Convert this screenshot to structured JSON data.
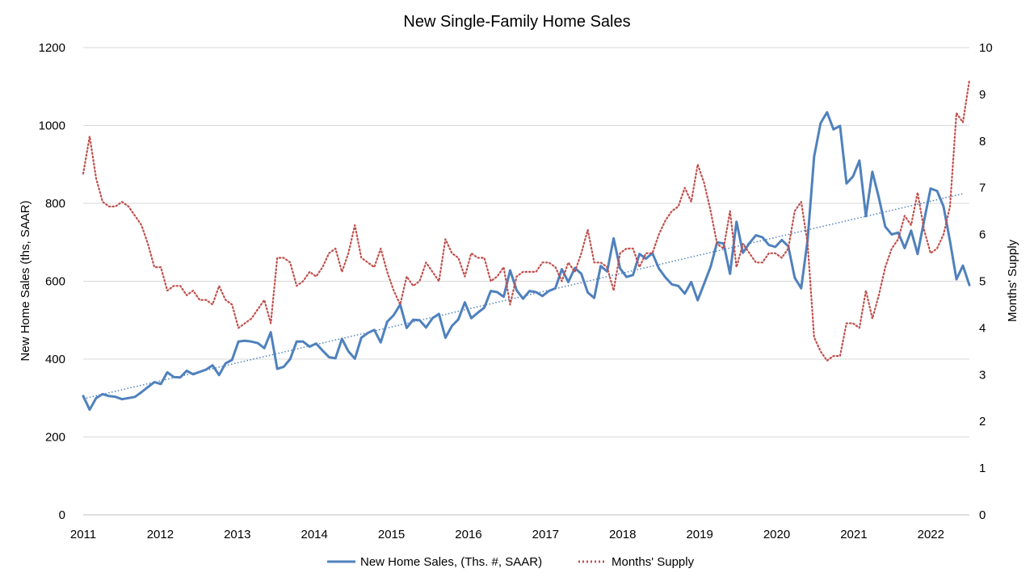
{
  "chart_data": {
    "type": "line",
    "title": "New Single-Family Home Sales",
    "ylabel_left": "New Home Sales (ths, SAAR)",
    "ylabel_right": "Months' Supply",
    "xlabel": "",
    "x_ticks": [
      "2011",
      "2012",
      "2013",
      "2014",
      "2015",
      "2016",
      "2017",
      "2018",
      "2019",
      "2020",
      "2021",
      "2022"
    ],
    "y_left_ticks": [
      "0",
      "200",
      "400",
      "600",
      "800",
      "1000",
      "1200"
    ],
    "y_right_ticks": [
      "0",
      "1",
      "2",
      "3",
      "4",
      "5",
      "6",
      "7",
      "8",
      "9",
      "10"
    ],
    "ylim_left": [
      0,
      1200
    ],
    "ylim_right": [
      0,
      10
    ],
    "xlim": [
      2011,
      2022.5
    ],
    "grid": "horizontal",
    "legend_position": "bottom",
    "series": [
      {
        "name": "New Home Sales, (Ths. #, SAAR)",
        "axis": "left",
        "color": "#4f81bd",
        "style": "solid",
        "values": [
          305,
          270,
          300,
          310,
          305,
          303,
          297,
          300,
          303,
          315,
          328,
          341,
          336,
          366,
          354,
          353,
          370,
          361,
          367,
          373,
          384,
          359,
          389,
          398,
          445,
          447,
          445,
          441,
          428,
          469,
          375,
          380,
          400,
          445,
          445,
          432,
          440,
          422,
          405,
          402,
          452,
          420,
          401,
          455,
          467,
          475,
          443,
          496,
          513,
          540,
          480,
          501,
          500,
          481,
          505,
          516,
          455,
          485,
          502,
          546,
          505,
          519,
          532,
          575,
          572,
          560,
          628,
          577,
          555,
          575,
          572,
          562,
          575,
          582,
          631,
          598,
          634,
          619,
          571,
          557,
          639,
          625,
          710,
          633,
          611,
          616,
          670,
          658,
          672,
          633,
          610,
          592,
          588,
          568,
          598,
          551,
          594,
          637,
          700,
          697,
          619,
          753,
          673,
          698,
          718,
          713,
          693,
          688,
          706,
          690,
          609,
          582,
          707,
          920,
          1006,
          1034,
          990,
          999,
          851,
          869,
          910,
          767,
          881,
          815,
          740,
          720,
          725,
          685,
          730,
          670,
          755,
          838,
          832,
          792,
          703,
          605,
          640,
          590
        ]
      },
      {
        "name": "Months' Supply",
        "axis": "right",
        "color": "#c0504d",
        "style": "dotted",
        "values": [
          7.3,
          8.1,
          7.2,
          6.7,
          6.6,
          6.6,
          6.7,
          6.6,
          6.4,
          6.2,
          5.8,
          5.3,
          5.3,
          4.8,
          4.9,
          4.9,
          4.7,
          4.8,
          4.6,
          4.6,
          4.5,
          4.9,
          4.6,
          4.5,
          4.0,
          4.1,
          4.2,
          4.4,
          4.6,
          4.1,
          5.5,
          5.5,
          5.4,
          4.9,
          5.0,
          5.2,
          5.1,
          5.3,
          5.6,
          5.7,
          5.2,
          5.6,
          6.2,
          5.5,
          5.4,
          5.3,
          5.7,
          5.2,
          4.8,
          4.5,
          5.1,
          4.9,
          5.0,
          5.4,
          5.2,
          5.0,
          5.9,
          5.6,
          5.5,
          5.1,
          5.6,
          5.5,
          5.5,
          5.0,
          5.1,
          5.3,
          4.5,
          5.1,
          5.2,
          5.2,
          5.2,
          5.4,
          5.4,
          5.3,
          5.0,
          5.4,
          5.2,
          5.6,
          6.1,
          5.4,
          5.4,
          5.3,
          4.8,
          5.6,
          5.7,
          5.7,
          5.3,
          5.6,
          5.6,
          6.0,
          6.3,
          6.5,
          6.6,
          7.0,
          6.7,
          7.5,
          7.1,
          6.5,
          5.8,
          5.7,
          6.5,
          5.3,
          5.8,
          5.6,
          5.4,
          5.4,
          5.6,
          5.6,
          5.5,
          5.7,
          6.5,
          6.7,
          5.8,
          3.8,
          3.5,
          3.3,
          3.4,
          3.4,
          4.1,
          4.1,
          4.0,
          4.8,
          4.2,
          4.7,
          5.3,
          5.7,
          5.9,
          6.4,
          6.2,
          6.9,
          6.1,
          5.6,
          5.7,
          6.0,
          6.6,
          8.6,
          8.4,
          9.3
        ]
      },
      {
        "name": "",
        "axis": "left",
        "color": "#4f81bd",
        "style": "trend-dotted",
        "trend_start": [
          2011,
          298
        ],
        "trend_end": [
          2022.42,
          825
        ]
      }
    ]
  }
}
